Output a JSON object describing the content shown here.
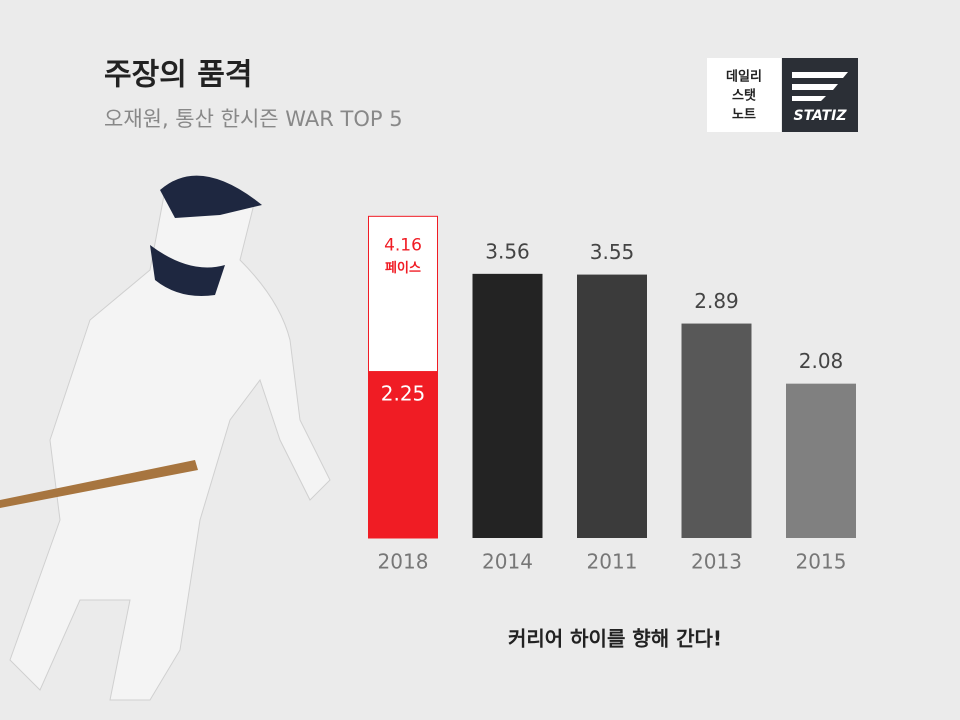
{
  "chart_data": {
    "type": "bar",
    "title": "주장의 품격",
    "subtitle": "오재원, 통산 한시즌 WAR TOP 5",
    "annotation": "커리어 하이를 향해 간다!",
    "logo_lines": [
      "데일리",
      "스탯",
      "노트"
    ],
    "brand": "STATIZ",
    "categories": [
      "2018",
      "2014",
      "2011",
      "2013",
      "2015"
    ],
    "values": [
      2.25,
      3.56,
      3.55,
      2.89,
      2.08
    ],
    "colors": [
      "#f01c24",
      "#232323",
      "#3b3b3b",
      "#585858",
      "#808080"
    ],
    "pace_label": "페이스",
    "pace_values": [
      4.16,
      null,
      null,
      null,
      null
    ]
  }
}
